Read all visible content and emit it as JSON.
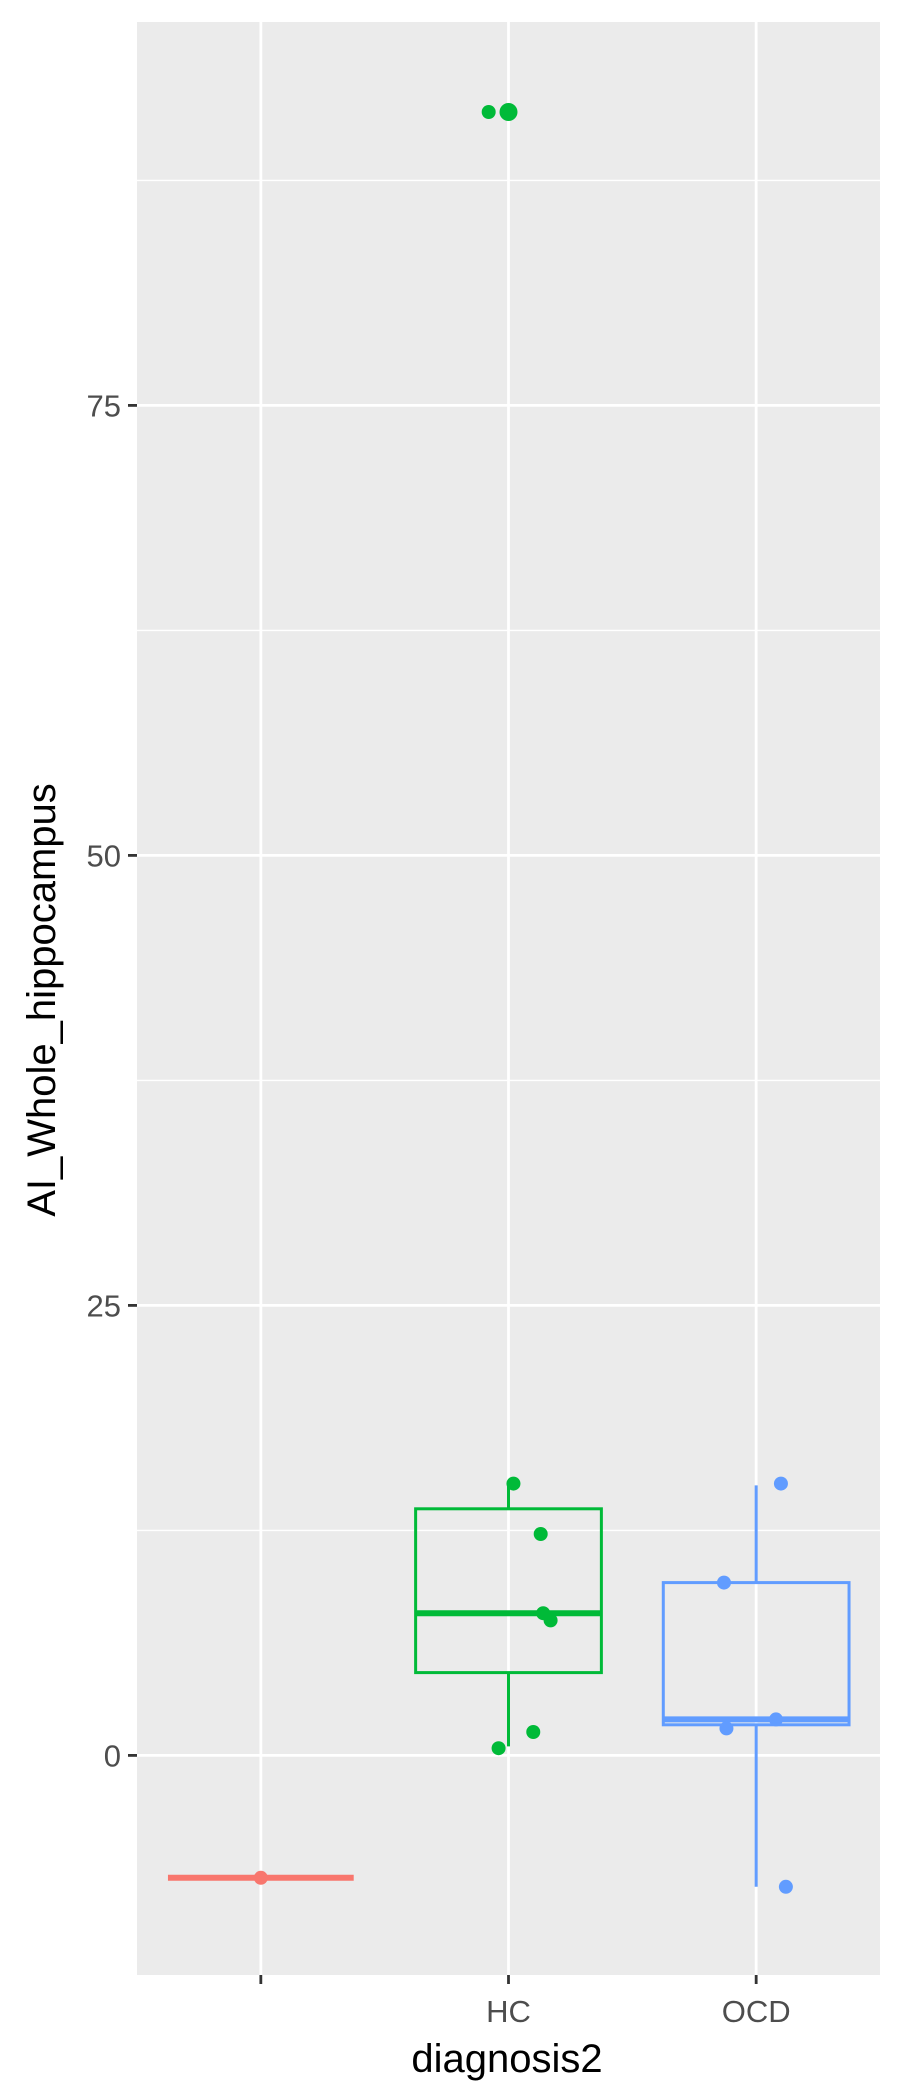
{
  "chart_data": {
    "type": "boxplot",
    "xlabel": "diagnosis2",
    "ylabel": "AI_Whole_hippocampus",
    "categories": [
      "",
      "HC",
      "OCD"
    ],
    "y_ticks": [
      0,
      25,
      50,
      75
    ],
    "ylim": [
      -12.2,
      96.3
    ],
    "grid": true,
    "legend": "none",
    "colors": {
      "panel": "#ebebeb",
      "grid": "#ffffff",
      "missing": "#f8766d",
      "HC": "#00ba38",
      "OCD": "#619cff"
    },
    "series": [
      {
        "category": "",
        "color": "#f8766d",
        "box": {
          "lower_whisker": -6.8,
          "q1": -6.8,
          "median": -6.8,
          "q3": -6.8,
          "upper_whisker": -6.8
        },
        "outliers": [],
        "points": [
          {
            "x": 0.0,
            "y": -6.8
          }
        ]
      },
      {
        "category": "HC",
        "color": "#00ba38",
        "box": {
          "lower_whisker": 0.5,
          "q1": 4.6,
          "median": 7.9,
          "q3": 13.7,
          "upper_whisker": 15.2
        },
        "outliers": [
          91.3
        ],
        "points": [
          {
            "x": -0.08,
            "y": 91.3
          },
          {
            "x": 0.0,
            "y": 91.3
          },
          {
            "x": 0.02,
            "y": 15.1
          },
          {
            "x": 0.13,
            "y": 12.3
          },
          {
            "x": 0.14,
            "y": 7.9
          },
          {
            "x": 0.17,
            "y": 7.5
          },
          {
            "x": 0.1,
            "y": 1.3
          },
          {
            "x": -0.04,
            "y": 0.4
          }
        ]
      },
      {
        "category": "OCD",
        "color": "#619cff",
        "box": {
          "lower_whisker": -7.3,
          "q1": 1.7,
          "median": 2.0,
          "q3": 9.6,
          "upper_whisker": 15.0
        },
        "outliers": [],
        "points": [
          {
            "x": 0.1,
            "y": 15.1
          },
          {
            "x": -0.13,
            "y": 9.6
          },
          {
            "x": 0.08,
            "y": 2.0
          },
          {
            "x": -0.12,
            "y": 1.5
          },
          {
            "x": 0.12,
            "y": -7.3
          }
        ]
      }
    ]
  }
}
